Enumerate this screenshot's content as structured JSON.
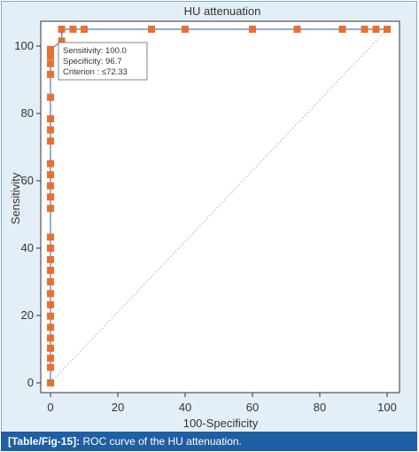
{
  "chart_data": {
    "type": "line",
    "title": "HU attenuation",
    "xlabel": "100-Specificity",
    "ylabel": "Sensitivity",
    "xlim": [
      0,
      100
    ],
    "ylim": [
      0,
      105
    ],
    "x_ticks": [
      "0",
      "20",
      "40",
      "60",
      "80",
      "100"
    ],
    "y_ticks": [
      "0",
      "20",
      "40",
      "60",
      "80",
      "100"
    ],
    "grid": false,
    "legend": "none",
    "series": [
      {
        "x": [
          0,
          0,
          0,
          0,
          0,
          0,
          0,
          0,
          0,
          0,
          0,
          0,
          0,
          0,
          0,
          0,
          0,
          0,
          0,
          0,
          0,
          0,
          0,
          0,
          0,
          0,
          0,
          0,
          0,
          3.3,
          3.3,
          6.7,
          10,
          30,
          40,
          60,
          73.3,
          86.7,
          93.3,
          96.7,
          100
        ],
        "y": [
          0,
          4.6,
          7.3,
          10.3,
          13.3,
          16.5,
          19.8,
          23.2,
          26.5,
          30,
          33.4,
          36.6,
          40,
          43.3,
          51.8,
          55.2,
          58.5,
          61.8,
          65.1,
          71.8,
          75.1,
          78.4,
          84.8,
          91.6,
          94.8,
          97,
          98,
          98.5,
          99,
          101.5,
          105,
          105,
          105,
          105,
          105,
          105,
          105,
          105,
          105,
          105,
          105
        ]
      }
    ],
    "diagonal": {
      "x": [
        0,
        100
      ],
      "y": [
        0,
        105
      ]
    },
    "annotation": {
      "lines": [
        "Sensitivity: 100.0",
        "Specificity: 96.7",
        "Criterion : ≤72.33"
      ],
      "point": {
        "x": 3.3,
        "y": 105
      }
    },
    "colors": {
      "marker": "#e86f2f",
      "line": "#5577bb",
      "diagonal": "#bbbbbb",
      "axis": "#333333"
    }
  },
  "caption": {
    "label": "[Table/Fig-15]:",
    "text": " ROC curve of the HU attenuation."
  }
}
